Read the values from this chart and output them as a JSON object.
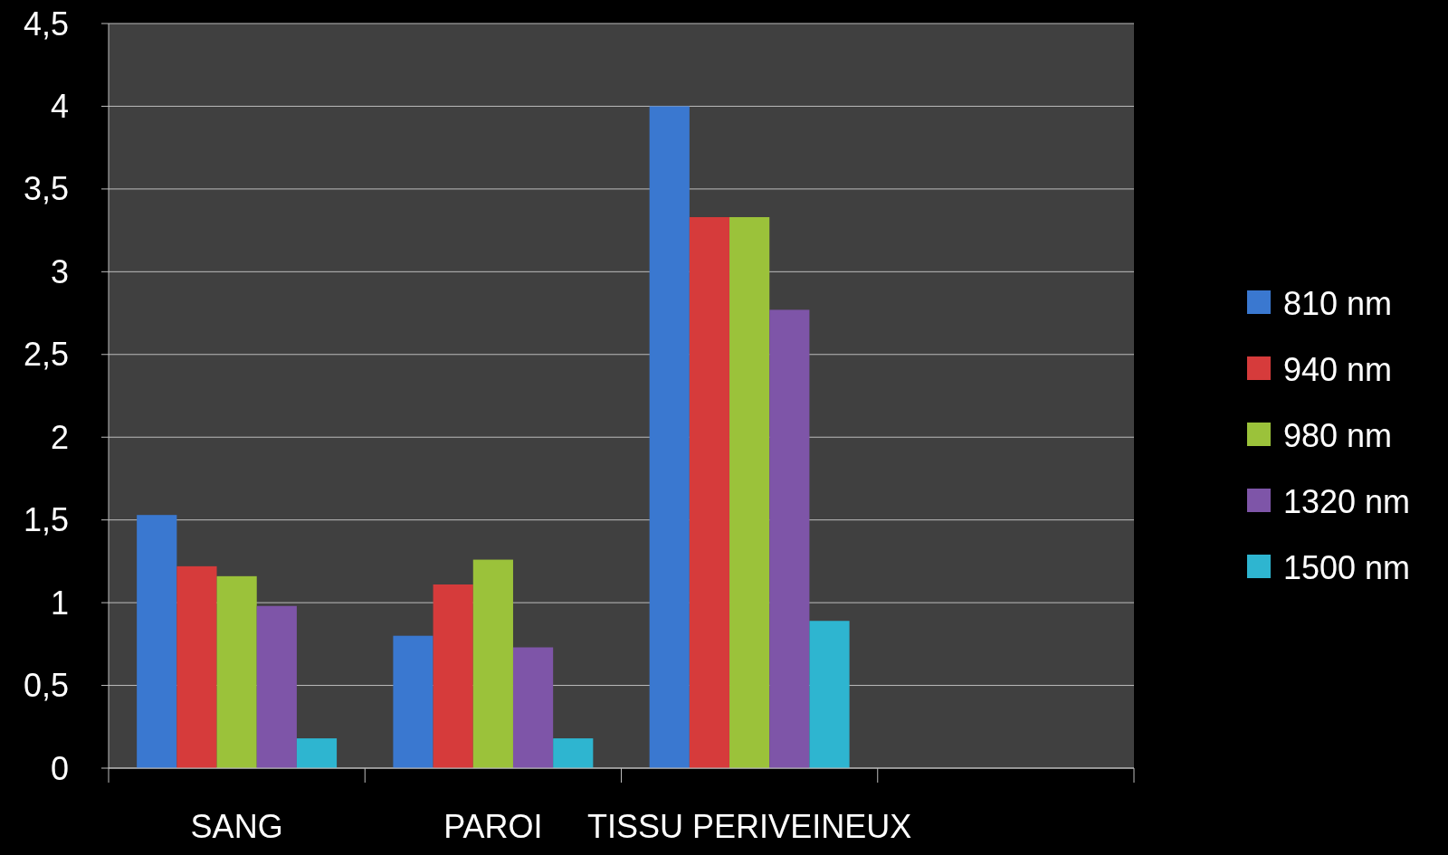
{
  "chart_data": {
    "type": "bar",
    "categories": [
      "SANG",
      "PAROI",
      "TISSU PERIVEINEUX",
      null
    ],
    "series": [
      {
        "name": "810 nm",
        "color": "#3a78d0",
        "values": [
          1.53,
          0.8,
          4.0,
          null
        ]
      },
      {
        "name": "940 nm",
        "color": "#d63b3b",
        "values": [
          1.22,
          1.11,
          3.33,
          null
        ]
      },
      {
        "name": "980 nm",
        "color": "#9bc23a",
        "values": [
          1.16,
          1.26,
          3.33,
          null
        ]
      },
      {
        "name": "1320 nm",
        "color": "#7e55a8",
        "values": [
          0.98,
          0.73,
          2.77,
          null
        ]
      },
      {
        "name": "1500 nm",
        "color": "#2eb5d0",
        "values": [
          0.18,
          0.18,
          0.89,
          null
        ]
      }
    ],
    "ylim": [
      0,
      4.5
    ],
    "yticks": [
      0,
      {
        "value": 0.5,
        "label": "0,5"
      },
      1,
      {
        "value": 1.5,
        "label": "1,5"
      },
      2,
      {
        "value": 2.5,
        "label": "2,5"
      },
      3,
      {
        "value": 3.5,
        "label": "3,5"
      },
      4,
      {
        "value": 4.5,
        "label": "4,5"
      }
    ],
    "grid": "y",
    "legend": "right"
  }
}
